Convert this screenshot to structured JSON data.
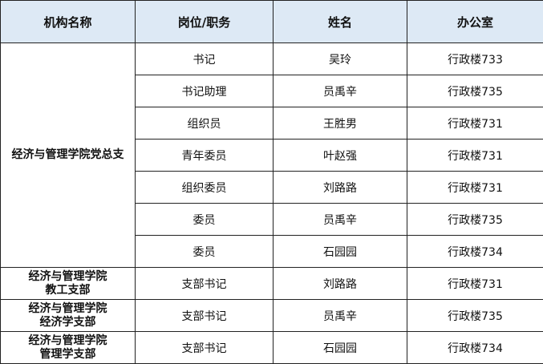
{
  "headers": [
    "机构名称",
    "岗位/职务",
    "姓名",
    "办公室"
  ],
  "header_bg": "#dde9f5",
  "groups": [
    {
      "org_lines": [
        "经济与管理学院党总支"
      ],
      "rows": [
        {
          "position": "书记",
          "name": "吴玲",
          "office": "行政楼733"
        },
        {
          "position": "书记助理",
          "name": "员禹辛",
          "office": "行政楼735"
        },
        {
          "position": "组织员",
          "name": "王胜男",
          "office": "行政楼731"
        },
        {
          "position": "青年委员",
          "name": "叶赵强",
          "office": "行政楼731"
        },
        {
          "position": "组织委员",
          "name": "刘路路",
          "office": "行政楼731"
        },
        {
          "position": "委员",
          "name": "员禹辛",
          "office": "行政楼735"
        },
        {
          "position": "委员",
          "name": "石园园",
          "office": "行政楼734"
        }
      ]
    },
    {
      "org_lines": [
        "经济与管理学院",
        "教工支部"
      ],
      "rows": [
        {
          "position": "支部书记",
          "name": "刘路路",
          "office": "行政楼731"
        }
      ]
    },
    {
      "org_lines": [
        "经济与管理学院",
        "经济学支部"
      ],
      "rows": [
        {
          "position": "支部书记",
          "name": "员禹辛",
          "office": "行政楼735"
        }
      ]
    },
    {
      "org_lines": [
        "经济与管理学院",
        "管理学支部"
      ],
      "rows": [
        {
          "position": "支部书记",
          "name": "石园园",
          "office": "行政楼734"
        }
      ]
    }
  ]
}
